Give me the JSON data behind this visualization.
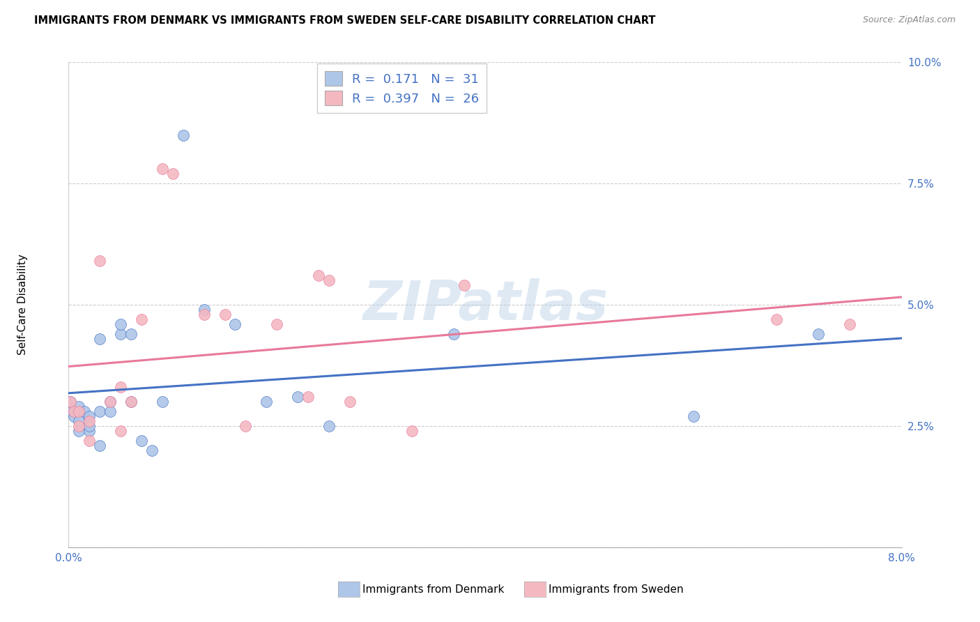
{
  "title": "IMMIGRANTS FROM DENMARK VS IMMIGRANTS FROM SWEDEN SELF-CARE DISABILITY CORRELATION CHART",
  "source": "Source: ZipAtlas.com",
  "ylabel": "Self-Care Disability",
  "xlim": [
    0.0,
    0.08
  ],
  "ylim": [
    0.0,
    0.1
  ],
  "x_ticks": [
    0.0,
    0.01,
    0.02,
    0.03,
    0.04,
    0.05,
    0.06,
    0.07,
    0.08
  ],
  "y_ticks": [
    0.0,
    0.025,
    0.05,
    0.075,
    0.1
  ],
  "y_tick_labels": [
    "",
    "2.5%",
    "5.0%",
    "7.5%",
    "10.0%"
  ],
  "denmark_R": "0.171",
  "denmark_N": "31",
  "sweden_R": "0.397",
  "sweden_N": "26",
  "denmark_color": "#aec6e8",
  "sweden_color": "#f4b8c1",
  "denmark_line_color": "#4472c4",
  "sweden_line_color": "#e8799a",
  "background_color": "#ffffff",
  "watermark_text": "ZIPatlas",
  "denmark_x": [
    0.0002,
    0.0003,
    0.0005,
    0.001,
    0.001,
    0.001,
    0.0015,
    0.002,
    0.002,
    0.002,
    0.003,
    0.003,
    0.003,
    0.004,
    0.004,
    0.005,
    0.005,
    0.006,
    0.006,
    0.007,
    0.008,
    0.009,
    0.011,
    0.013,
    0.016,
    0.019,
    0.022,
    0.025,
    0.037,
    0.06,
    0.072
  ],
  "denmark_y": [
    0.03,
    0.028,
    0.027,
    0.029,
    0.026,
    0.024,
    0.028,
    0.024,
    0.027,
    0.025,
    0.028,
    0.021,
    0.043,
    0.03,
    0.028,
    0.044,
    0.046,
    0.03,
    0.044,
    0.022,
    0.02,
    0.03,
    0.085,
    0.049,
    0.046,
    0.03,
    0.031,
    0.025,
    0.044,
    0.027,
    0.044
  ],
  "sweden_x": [
    0.0002,
    0.0005,
    0.001,
    0.001,
    0.002,
    0.002,
    0.003,
    0.004,
    0.005,
    0.005,
    0.006,
    0.007,
    0.009,
    0.01,
    0.013,
    0.015,
    0.017,
    0.02,
    0.023,
    0.024,
    0.025,
    0.027,
    0.033,
    0.038,
    0.068,
    0.075
  ],
  "sweden_y": [
    0.03,
    0.028,
    0.028,
    0.025,
    0.026,
    0.022,
    0.059,
    0.03,
    0.033,
    0.024,
    0.03,
    0.047,
    0.078,
    0.077,
    0.048,
    0.048,
    0.025,
    0.046,
    0.031,
    0.056,
    0.055,
    0.03,
    0.024,
    0.054,
    0.047,
    0.046
  ],
  "marker_size": 130
}
